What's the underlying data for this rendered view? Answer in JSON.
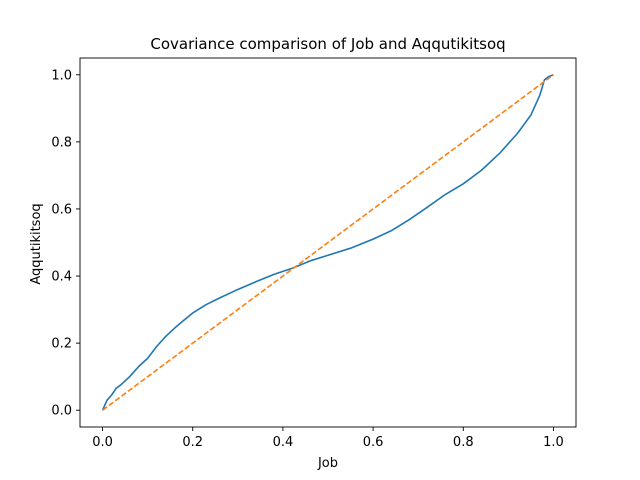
{
  "chart_data": {
    "type": "line",
    "title": "Covariance comparison of Job and Aqqutikitsoq",
    "xlabel": "Job",
    "ylabel": "Aqqutikitsoq",
    "xlim": [
      -0.05,
      1.05
    ],
    "ylim": [
      -0.05,
      1.05
    ],
    "xticks": [
      0.0,
      0.2,
      0.4,
      0.6,
      0.8,
      1.0
    ],
    "yticks": [
      0.0,
      0.2,
      0.4,
      0.6,
      0.8,
      1.0
    ],
    "xtick_labels": [
      "0.0",
      "0.2",
      "0.4",
      "0.6",
      "0.8",
      "1.0"
    ],
    "ytick_labels": [
      "0.0",
      "0.2",
      "0.4",
      "0.6",
      "0.8",
      "1.0"
    ],
    "grid": false,
    "legend": "none",
    "series": [
      {
        "color": "#1f77b4",
        "style": "solid",
        "x": [
          0.0,
          0.01,
          0.02,
          0.03,
          0.04,
          0.06,
          0.08,
          0.1,
          0.12,
          0.14,
          0.16,
          0.18,
          0.2,
          0.23,
          0.26,
          0.3,
          0.34,
          0.38,
          0.42,
          0.46,
          0.5,
          0.55,
          0.6,
          0.64,
          0.68,
          0.72,
          0.76,
          0.8,
          0.84,
          0.88,
          0.92,
          0.95,
          0.97,
          0.98,
          0.99,
          1.0
        ],
        "y": [
          0.0,
          0.03,
          0.045,
          0.065,
          0.075,
          0.1,
          0.13,
          0.155,
          0.19,
          0.22,
          0.245,
          0.268,
          0.29,
          0.315,
          0.335,
          0.36,
          0.383,
          0.405,
          0.423,
          0.445,
          0.462,
          0.483,
          0.51,
          0.535,
          0.568,
          0.605,
          0.643,
          0.675,
          0.715,
          0.765,
          0.825,
          0.88,
          0.94,
          0.985,
          0.995,
          1.0
        ]
      },
      {
        "color": "#ff7f0e",
        "style": "dashed",
        "x": [
          0.0,
          1.0
        ],
        "y": [
          0.0,
          1.0
        ]
      }
    ]
  }
}
